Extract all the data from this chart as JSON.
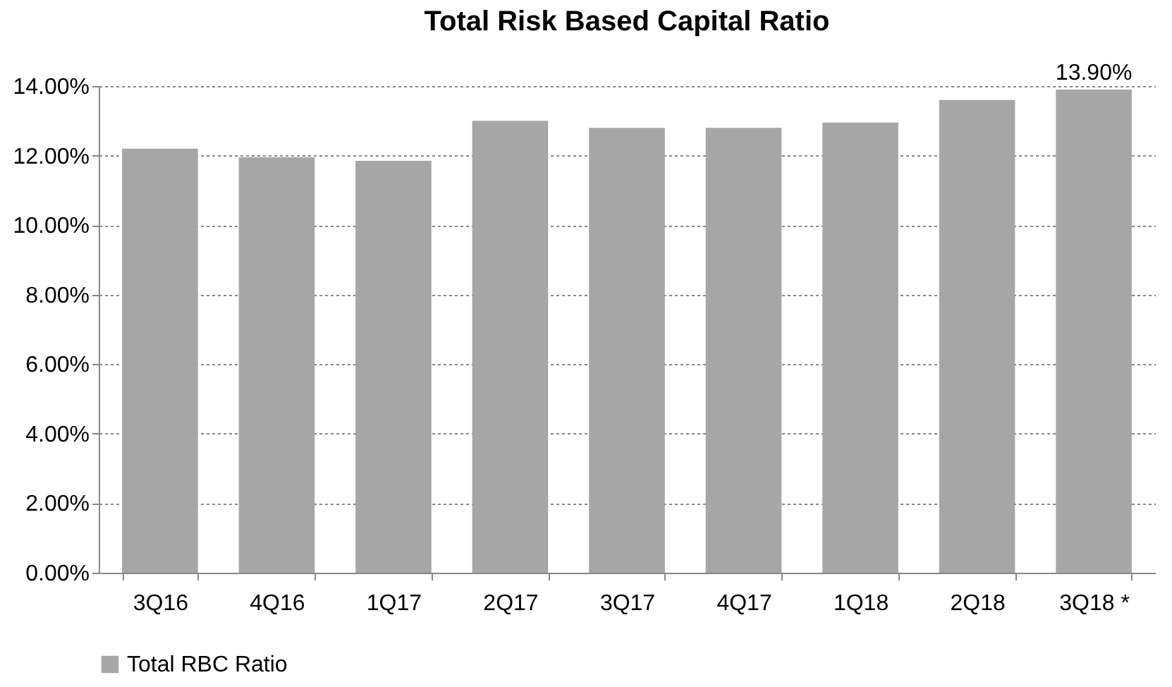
{
  "chart_data": {
    "type": "bar",
    "title": "Total Risk Based Capital Ratio",
    "categories": [
      "3Q16",
      "4Q16",
      "1Q17",
      "2Q17",
      "3Q17",
      "4Q17",
      "1Q18",
      "2Q18",
      "3Q18 *"
    ],
    "series": [
      {
        "name": "Total RBC Ratio",
        "color": "#a6a6a6",
        "values": [
          12.2,
          11.95,
          11.85,
          13.0,
          12.8,
          12.8,
          12.95,
          13.6,
          13.9
        ],
        "value_labels": [
          null,
          null,
          null,
          null,
          null,
          null,
          null,
          null,
          "13.90%"
        ]
      }
    ],
    "ylim": [
      0,
      14
    ],
    "yticks": [
      {
        "value": 0,
        "label": "0.00%"
      },
      {
        "value": 2,
        "label": "2.00%"
      },
      {
        "value": 4,
        "label": "4.00%"
      },
      {
        "value": 6,
        "label": "6.00%"
      },
      {
        "value": 8,
        "label": "8.00%"
      },
      {
        "value": 10,
        "label": "10.00%"
      },
      {
        "value": 12,
        "label": "12.00%"
      },
      {
        "value": 14,
        "label": "14.00%"
      }
    ],
    "grid": "y",
    "legend": "bottom"
  }
}
